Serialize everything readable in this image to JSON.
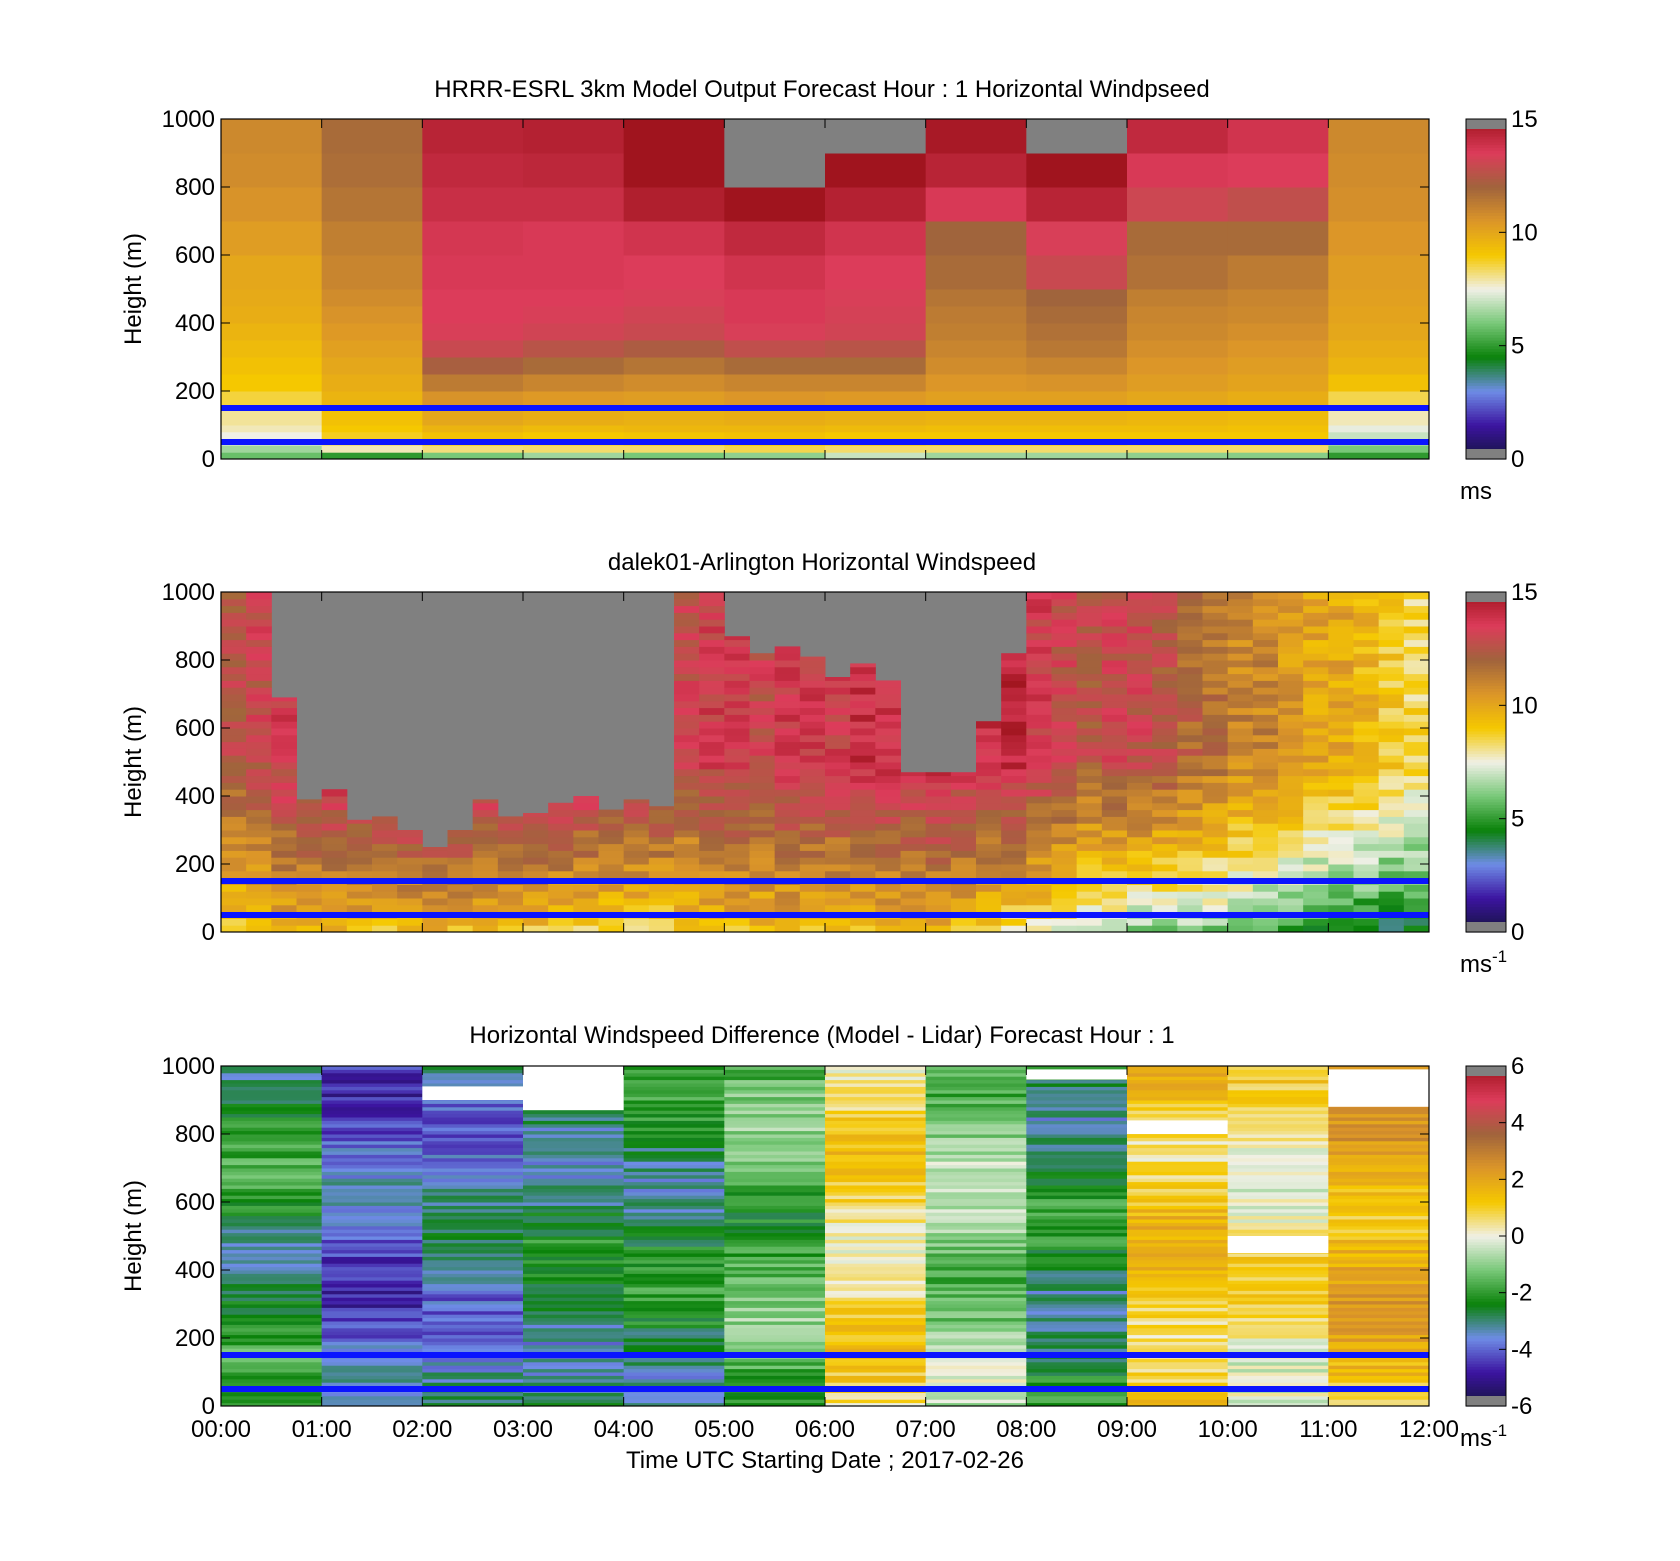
{
  "figure": {
    "xlabel": "Time UTC  Starting Date ; 2017-02-26",
    "x_ticks": [
      "00:00",
      "01:00",
      "02:00",
      "03:00",
      "04:00",
      "05:00",
      "06:00",
      "07:00",
      "08:00",
      "09:00",
      "10:00",
      "11:00",
      "12:00"
    ],
    "blue_lines_height_m": [
      50,
      150
    ],
    "blue_line_color": "#0a14ff",
    "missing_color": "#808080",
    "colormap_windspeed": [
      "#14143c",
      "#3c14a0",
      "#6e8ce6",
      "#0a820a",
      "#78c878",
      "#f0f0e6",
      "#f5c800",
      "#dc9628",
      "#a0643c",
      "#dc3c5a",
      "#a0141e"
    ]
  },
  "chart_data": [
    {
      "type": "heatmap",
      "title": "HRRR-ESRL 3km Model Output   Forecast Hour : 1 Horizontal Windpseed",
      "ylabel": "Height (m)",
      "ylim": [
        0,
        1000
      ],
      "y_ticks": [
        "0",
        "200",
        "400",
        "600",
        "800",
        "1000"
      ],
      "x_range_hours": [
        0,
        12
      ],
      "colorbar": {
        "ticks": [
          "0",
          "5",
          "10",
          "15"
        ],
        "range": [
          0,
          15
        ],
        "unit": "ms",
        "unit_sup": ""
      },
      "value_unit": "m/s",
      "x_bin_hours": [
        0,
        1,
        2,
        3,
        4,
        5,
        6,
        7,
        8,
        9,
        10,
        11,
        12
      ],
      "y_bin_m": [
        0,
        20,
        40,
        60,
        80,
        100,
        150,
        200,
        250,
        300,
        350,
        400,
        450,
        500,
        600,
        700,
        800,
        900,
        1000
      ],
      "values": [
        [
          5.8,
          5.0,
          6.0,
          6.5,
          6.0,
          6.3,
          7.0,
          6.5,
          6.5,
          6.3,
          6.2,
          5.0
        ],
        [
          6.5,
          7.8,
          8.2,
          8.3,
          8.3,
          8.5,
          8.3,
          8.3,
          8.3,
          8.3,
          8.3,
          6.0
        ],
        [
          7.0,
          8.2,
          8.7,
          8.6,
          8.7,
          8.9,
          8.8,
          8.7,
          8.7,
          8.6,
          8.5,
          6.5
        ],
        [
          7.5,
          8.8,
          9.2,
          9.0,
          9.1,
          9.2,
          9.0,
          9.0,
          9.0,
          9.0,
          9.0,
          7.0
        ],
        [
          7.8,
          9.0,
          9.6,
          9.4,
          9.5,
          9.5,
          9.4,
          9.3,
          9.3,
          9.3,
          9.2,
          7.4
        ],
        [
          8.0,
          9.2,
          10.0,
          9.8,
          9.7,
          9.8,
          9.7,
          9.6,
          9.6,
          9.5,
          9.4,
          7.8
        ],
        [
          8.6,
          9.6,
          10.6,
          10.4,
          10.3,
          10.5,
          10.4,
          10.2,
          10.2,
          10.0,
          9.8,
          8.5
        ],
        [
          9.0,
          9.8,
          11.3,
          11.0,
          10.8,
          11.0,
          11.0,
          10.5,
          10.6,
          10.3,
          10.1,
          9.2
        ],
        [
          9.2,
          10.0,
          12.2,
          11.8,
          11.5,
          11.8,
          11.8,
          10.8,
          11.0,
          10.5,
          10.3,
          9.6
        ],
        [
          9.4,
          10.2,
          13.0,
          12.6,
          12.3,
          12.8,
          12.6,
          11.0,
          11.4,
          10.7,
          10.5,
          9.8
        ],
        [
          9.6,
          10.4,
          13.4,
          13.2,
          13.0,
          13.4,
          13.2,
          11.2,
          11.6,
          10.9,
          10.7,
          10.0
        ],
        [
          9.8,
          10.6,
          13.5,
          13.4,
          13.2,
          13.6,
          13.3,
          11.3,
          11.8,
          11.0,
          10.9,
          10.1
        ],
        [
          9.9,
          10.8,
          13.5,
          13.5,
          13.4,
          13.6,
          13.4,
          11.5,
          12.0,
          11.2,
          11.0,
          10.2
        ],
        [
          10.0,
          11.0,
          13.6,
          13.6,
          13.5,
          13.8,
          13.5,
          11.8,
          13.0,
          11.6,
          11.3,
          10.3
        ],
        [
          10.3,
          11.2,
          13.7,
          13.6,
          13.8,
          14.2,
          13.8,
          12.0,
          13.4,
          11.8,
          11.8,
          10.5
        ],
        [
          10.6,
          11.5,
          14.0,
          14.0,
          14.6,
          15.0,
          14.5,
          13.6,
          14.4,
          13.1,
          12.8,
          10.7
        ],
        [
          10.8,
          11.7,
          14.2,
          14.3,
          15.2,
          null,
          15.0,
          14.4,
          15.1,
          13.6,
          13.5,
          10.8
        ],
        [
          10.9,
          11.8,
          14.4,
          14.5,
          15.5,
          null,
          null,
          14.8,
          null,
          14.2,
          13.8,
          10.9
        ]
      ]
    },
    {
      "type": "heatmap",
      "title": "dalek01-Arlington  Horizontal Windspeed",
      "ylabel": "Height (m)",
      "ylim": [
        0,
        1000
      ],
      "y_ticks": [
        "0",
        "200",
        "400",
        "600",
        "800",
        "1000"
      ],
      "x_range_hours": [
        0,
        12
      ],
      "colorbar": {
        "ticks": [
          "0",
          "5",
          "10",
          "15"
        ],
        "range": [
          0,
          15
        ],
        "unit": "ms",
        "unit_sup": "-1"
      },
      "value_unit": "m/s",
      "time_step_hours": 0.25,
      "profile_tops_m": [
        1000,
        1000,
        690,
        390,
        420,
        330,
        340,
        300,
        250,
        300,
        390,
        340,
        350,
        380,
        400,
        360,
        390,
        370,
        1000,
        1000,
        870,
        820,
        840,
        810,
        750,
        790,
        740,
        470,
        470,
        470,
        620,
        820,
        1000,
        1000,
        1000,
        1000,
        1000,
        1000,
        1000,
        1000,
        1000,
        1000,
        1000,
        1000,
        1000,
        1000,
        1000,
        1000
      ],
      "low_level_speed_ms": [
        8.5,
        9.0,
        9.5,
        9.6,
        9.5,
        9.3,
        9.2,
        9.2,
        9.5,
        9.4,
        9.3,
        9.5,
        9.0,
        8.8,
        8.6,
        8.5,
        8.4,
        8.3,
        8.8,
        9.0,
        9.2,
        9.3,
        9.4,
        9.3,
        9.2,
        9.3,
        9.4,
        9.5,
        9.5,
        9.0,
        8.6,
        8.0,
        7.8,
        7.4,
        6.8,
        6.5,
        6.0,
        6.2,
        6.4,
        6.0,
        5.6,
        5.3,
        5.0,
        4.7,
        4.4,
        4.2,
        4.0,
        4.0
      ],
      "upper_level_speed_ms": [
        12.5,
        13.0,
        13.5,
        13.5,
        14.0,
        14.0,
        14.0,
        14.5,
        14.5,
        14.5,
        14.0,
        14.0,
        14.0,
        14.0,
        14.0,
        14.0,
        14.0,
        14.0,
        13.0,
        13.5,
        13.5,
        13.0,
        13.5,
        13.5,
        13.5,
        14.0,
        14.0,
        13.8,
        14.2,
        14.0,
        14.0,
        14.2,
        13.5,
        13.0,
        12.5,
        13.0,
        13.0,
        12.5,
        12.0,
        11.5,
        11.0,
        11.0,
        10.5,
        10.0,
        10.0,
        9.5,
        9.0,
        8.5
      ]
    },
    {
      "type": "heatmap",
      "title": "Horizontal Windspeed Difference (Model - Lidar) Forecast Hour : 1",
      "ylabel": "Height (m)",
      "ylim": [
        0,
        1000
      ],
      "y_ticks": [
        "0",
        "200",
        "400",
        "600",
        "800",
        "1000"
      ],
      "x_range_hours": [
        0,
        12
      ],
      "colorbar": {
        "ticks": [
          "-6",
          "-4",
          "-2",
          "0",
          "2",
          "4",
          "6"
        ],
        "range": [
          -6,
          6
        ],
        "unit": "ms",
        "unit_sup": "-1"
      },
      "value_unit": "m/s",
      "hourly_mean_difference_ms": [
        -2.4,
        -4.0,
        -3.4,
        -2.8,
        -2.6,
        -1.6,
        0.7,
        -1.0,
        -2.6,
        1.2,
        0.4,
        1.8
      ],
      "white_gaps_m": [
        [
          [
            3,
            870,
            1000
          ],
          [
            2,
            900,
            940
          ],
          [
            8,
            960,
            990
          ],
          [
            9,
            800,
            840
          ],
          [
            10,
            450,
            500
          ],
          [
            11,
            880,
            990
          ]
        ]
      ]
    }
  ]
}
